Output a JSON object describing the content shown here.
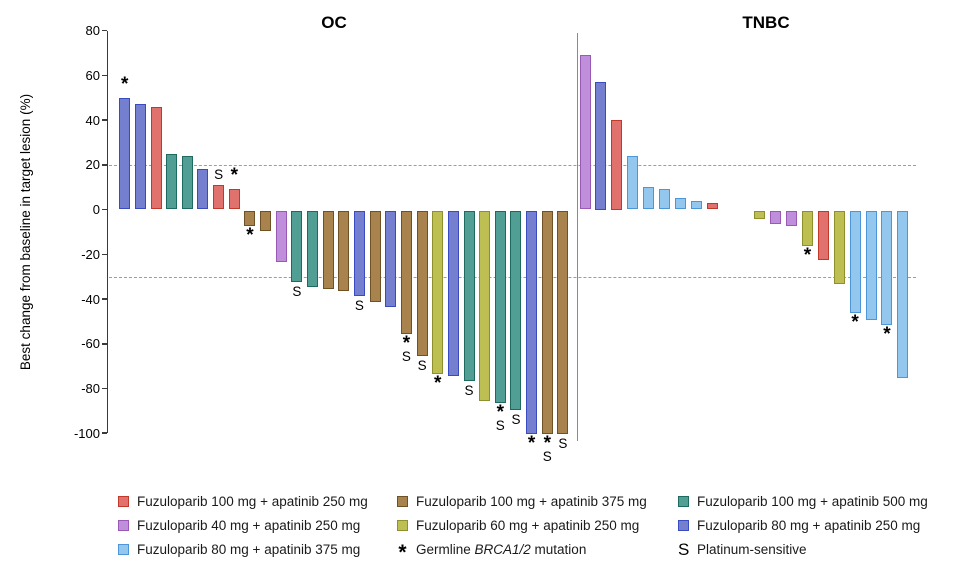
{
  "chart_data": {
    "type": "bar",
    "ylabel": "Best change from baseline in target lesion (%)",
    "ylim": [
      -100,
      80
    ],
    "yticks": [
      80,
      60,
      40,
      20,
      0,
      -20,
      -40,
      -60,
      -80,
      -100
    ],
    "reference_lines": [
      20,
      -30
    ],
    "grid": "off",
    "legend_position": "bottom",
    "groups": {
      "fz100_ap250": {
        "label": "Fuzuloparib 100 mg + apatinib 250 mg",
        "fill": "#E0716D",
        "border": "#C0392B"
      },
      "fz40_ap250": {
        "label": "Fuzuloparib 40 mg + apatinib 250 mg",
        "fill": "#C08FDB",
        "border": "#9B59B6"
      },
      "fz80_ap375": {
        "label": "Fuzuloparib 80 mg + apatinib 375 mg",
        "fill": "#94C7ED",
        "border": "#4D97D8"
      },
      "fz100_ap375": {
        "label": "Fuzuloparib 100 mg + apatinib 375 mg",
        "fill": "#A8834E",
        "border": "#6E5226"
      },
      "fz60_ap250": {
        "label": "Fuzuloparib 60 mg + apatinib 250 mg",
        "fill": "#BEBF53",
        "border": "#8E8F2D"
      },
      "fz100_ap500": {
        "label": "Fuzuloparib 100 mg + apatinib 500 mg",
        "fill": "#509E94",
        "border": "#1F6A60"
      },
      "fz80_ap250": {
        "label": "Fuzuloparib 80 mg + apatinib 250 mg",
        "fill": "#7480CF",
        "border": "#3A4BBF"
      }
    },
    "symbols": {
      "asterisk": {
        "glyph": "*",
        "label": "Germline BRCA1/2 mutation",
        "italic_part": "BRCA1/2"
      },
      "s": {
        "glyph": "S",
        "label": "Platinum-sensitive"
      }
    },
    "panels": [
      {
        "label": "OC",
        "bars": [
          {
            "v": 50,
            "g": "fz80_ap250",
            "s": "*"
          },
          {
            "v": 47,
            "g": "fz80_ap250",
            "s": ""
          },
          {
            "v": 46,
            "g": "fz100_ap250",
            "s": ""
          },
          {
            "v": 25,
            "g": "fz100_ap500",
            "s": ""
          },
          {
            "v": 24,
            "g": "fz100_ap500",
            "s": ""
          },
          {
            "v": 18,
            "g": "fz80_ap250",
            "s": ""
          },
          {
            "v": 11,
            "g": "fz100_ap250",
            "s": "S"
          },
          {
            "v": 9,
            "g": "fz100_ap250",
            "s": "*"
          },
          {
            "v": -7,
            "g": "fz100_ap375",
            "s": "*"
          },
          {
            "v": -9,
            "g": "fz100_ap375",
            "s": ""
          },
          {
            "v": -23,
            "g": "fz40_ap250",
            "s": ""
          },
          {
            "v": -32,
            "g": "fz100_ap500",
            "s": "S"
          },
          {
            "v": -34,
            "g": "fz100_ap500",
            "s": ""
          },
          {
            "v": -35,
            "g": "fz100_ap375",
            "s": ""
          },
          {
            "v": -36,
            "g": "fz100_ap375",
            "s": ""
          },
          {
            "v": -38,
            "g": "fz80_ap250",
            "s": "S"
          },
          {
            "v": -41,
            "g": "fz100_ap375",
            "s": ""
          },
          {
            "v": -43,
            "g": "fz80_ap250",
            "s": ""
          },
          {
            "v": -55,
            "g": "fz100_ap375",
            "s": "*S"
          },
          {
            "v": -65,
            "g": "fz100_ap375",
            "s": "S"
          },
          {
            "v": -73,
            "g": "fz60_ap250",
            "s": "*"
          },
          {
            "v": -74,
            "g": "fz80_ap250",
            "s": ""
          },
          {
            "v": -76,
            "g": "fz100_ap500",
            "s": "S"
          },
          {
            "v": -85,
            "g": "fz60_ap250",
            "s": ""
          },
          {
            "v": -86,
            "g": "fz100_ap500",
            "s": "*S"
          },
          {
            "v": -89,
            "g": "fz100_ap500",
            "s": "S"
          },
          {
            "v": -100,
            "g": "fz80_ap250",
            "s": "*"
          },
          {
            "v": -100,
            "g": "fz100_ap375",
            "s": "*S"
          },
          {
            "v": -100,
            "g": "fz100_ap375",
            "s": "S"
          }
        ]
      },
      {
        "label": "TNBC",
        "bars": [
          {
            "v": 69,
            "g": "fz40_ap250",
            "s": ""
          },
          {
            "v": 57,
            "g": "fz80_ap250",
            "s": ""
          },
          {
            "v": 40,
            "g": "fz100_ap250",
            "s": ""
          },
          {
            "v": 24,
            "g": "fz80_ap375",
            "s": ""
          },
          {
            "v": 10,
            "g": "fz80_ap375",
            "s": ""
          },
          {
            "v": 9,
            "g": "fz80_ap375",
            "s": ""
          },
          {
            "v": 5,
            "g": "fz80_ap375",
            "s": ""
          },
          {
            "v": 4,
            "g": "fz80_ap375",
            "s": ""
          },
          {
            "v": 3,
            "g": "fz100_ap250",
            "s": ""
          },
          null,
          null,
          {
            "v": -4,
            "g": "fz60_ap250",
            "s": ""
          },
          {
            "v": -6,
            "g": "fz40_ap250",
            "s": ""
          },
          {
            "v": -7,
            "g": "fz40_ap250",
            "s": ""
          },
          {
            "v": -16,
            "g": "fz60_ap250",
            "s": "*"
          },
          {
            "v": -22,
            "g": "fz100_ap250",
            "s": ""
          },
          {
            "v": -33,
            "g": "fz60_ap250",
            "s": ""
          },
          {
            "v": -46,
            "g": "fz80_ap375",
            "s": "*"
          },
          {
            "v": -49,
            "g": "fz80_ap375",
            "s": ""
          },
          {
            "v": -51,
            "g": "fz80_ap375",
            "s": "*"
          },
          {
            "v": -75,
            "g": "fz80_ap375",
            "s": ""
          }
        ]
      }
    ]
  },
  "legend": {
    "columns": [
      [
        {
          "type": "swatch",
          "group": "fz100_ap250"
        },
        {
          "type": "swatch",
          "group": "fz40_ap250"
        },
        {
          "type": "swatch",
          "group": "fz80_ap375"
        }
      ],
      [
        {
          "type": "swatch",
          "group": "fz100_ap375"
        },
        {
          "type": "swatch",
          "group": "fz60_ap250"
        },
        {
          "type": "symbol",
          "key": "asterisk"
        }
      ],
      [
        {
          "type": "swatch",
          "group": "fz100_ap500"
        },
        {
          "type": "swatch",
          "group": "fz80_ap250"
        },
        {
          "type": "symbol",
          "key": "s"
        }
      ]
    ]
  }
}
